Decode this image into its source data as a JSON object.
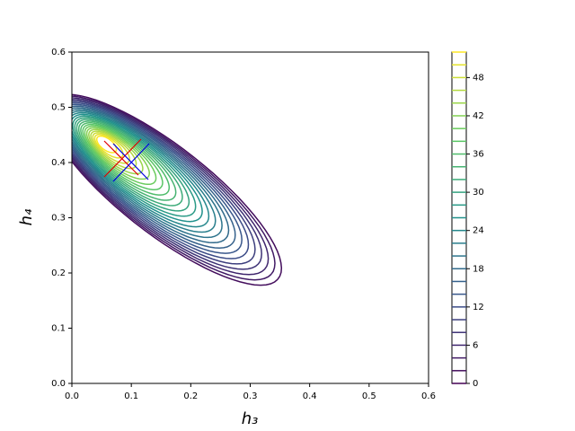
{
  "chart_data": {
    "type": "contour",
    "x_label": "h₃",
    "y_label": "h₄",
    "xlim": [
      0,
      0.6
    ],
    "ylim": [
      0,
      0.6
    ],
    "xticks": [
      {
        "value": 0,
        "label": "0.0"
      },
      0.1,
      0.2,
      0.3,
      0.4,
      0.5,
      0.6
    ],
    "yticks": [
      {
        "value": 0,
        "label": "0.0"
      },
      0.1,
      0.2,
      0.3,
      0.4,
      0.5,
      0.6
    ],
    "peak": [
      0.05,
      0.44
    ],
    "levels": [
      0,
      2,
      4,
      6,
      8,
      10,
      12,
      14,
      16,
      18,
      20,
      22,
      24,
      26,
      28,
      30,
      32,
      34,
      36,
      38,
      40,
      42,
      44,
      46,
      48,
      50,
      52
    ],
    "colormap": [
      "#440154",
      "#3b528b",
      "#21918c",
      "#5ec962",
      "#fde725"
    ],
    "colorbar_lim": [
      0,
      52
    ],
    "colorbar_ticks": [
      0,
      6,
      12,
      18,
      24,
      30,
      36,
      42,
      48
    ]
  }
}
